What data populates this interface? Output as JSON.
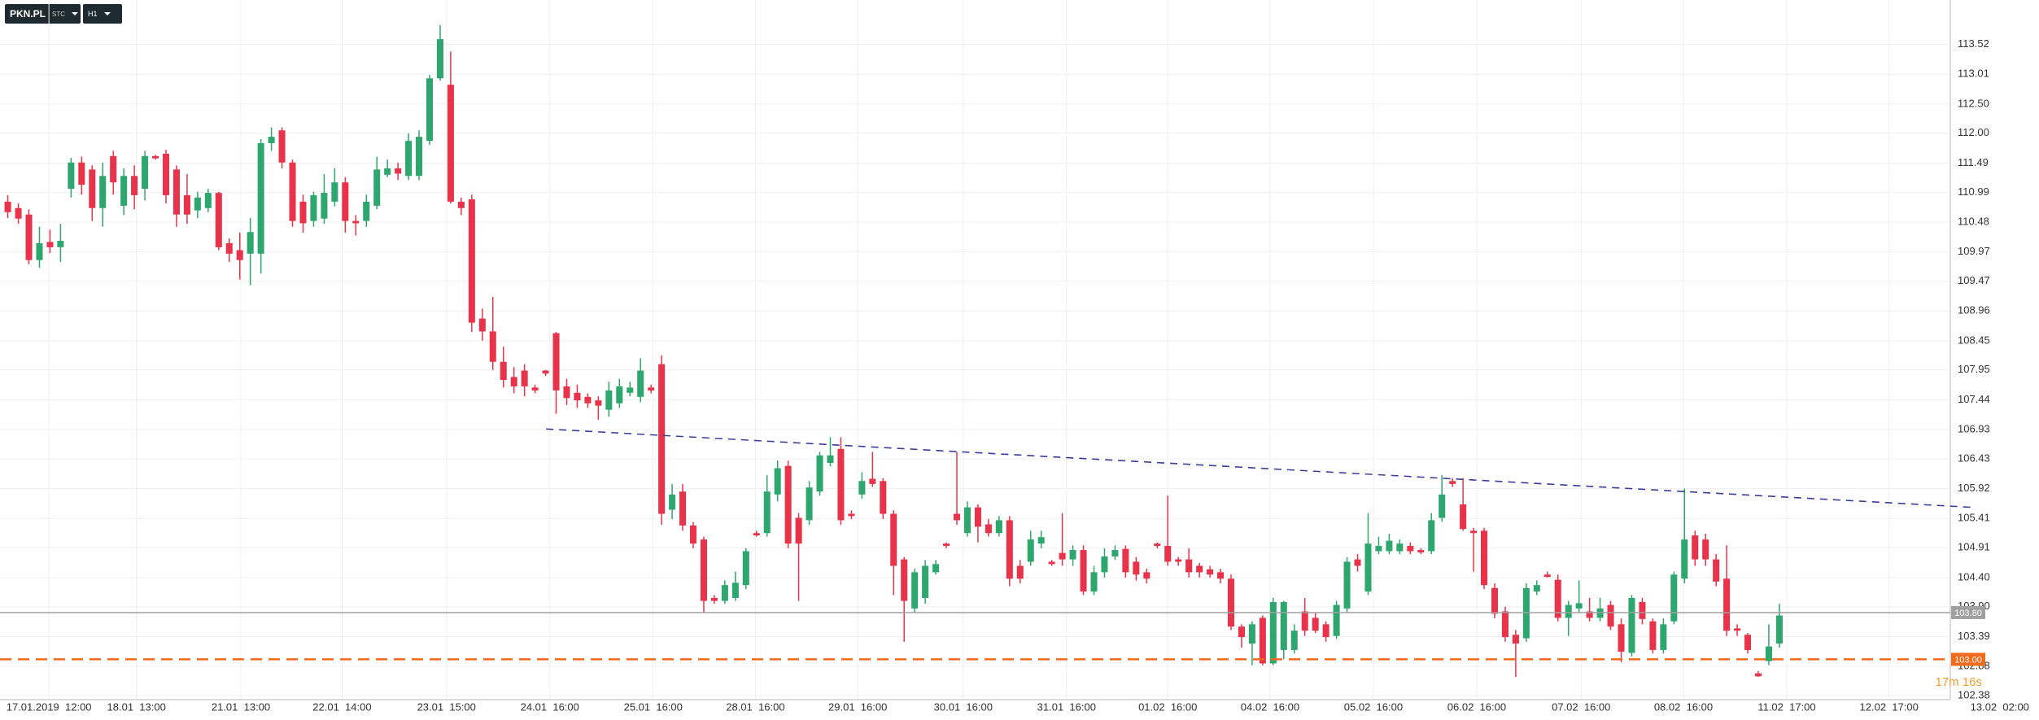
{
  "toolbar": {
    "symbol": "PKN.PL",
    "market": "STC",
    "interval": "H1"
  },
  "chart_data": {
    "type": "candlestick",
    "up_color": "#2ea76f",
    "down_color": "#e8334a",
    "grid": true,
    "open": [
      110.83,
      110.72,
      110.61,
      109.83,
      110.14,
      110.05,
      111.05,
      111.5,
      111.38,
      110.72,
      111.61,
      110.76,
      111.27,
      111.05,
      111.61,
      111.65,
      111.38,
      110.94,
      110.68,
      110.72,
      110.98,
      110.12,
      110.0,
      109.94,
      109.94,
      111.83,
      112.05,
      111.5,
      110.83,
      110.5,
      110.54,
      110.83,
      111.16,
      110.5,
      110.5,
      110.76,
      111.29,
      111.4,
      111.27,
      111.27,
      111.87,
      112.94,
      112.83,
      110.83,
      110.87,
      108.83,
      108.61,
      108.09,
      107.83,
      107.94,
      107.65,
      107.94,
      108.58,
      107.67,
      107.56,
      107.49,
      107.43,
      107.27,
      107.38,
      107.56,
      107.49,
      107.65,
      108.05,
      105.56,
      105.87,
      105.29,
      105.05,
      104.05,
      104.0,
      104.05,
      104.27,
      105.16,
      105.16,
      105.82,
      106.31,
      105.42,
      105.38,
      105.87,
      106.36,
      106.6,
      105.49,
      105.82,
      106.09,
      106.05,
      105.49,
      104.71,
      103.87,
      104.05,
      104.49,
      104.98,
      105.49,
      105.16,
      105.6,
      105.31,
      105.16,
      105.38,
      104.6,
      104.67,
      104.98,
      104.67,
      104.82,
      104.71,
      104.87,
      104.16,
      104.49,
      104.76,
      104.89,
      104.67,
      104.49,
      104.98,
      104.94,
      104.71,
      104.71,
      104.6,
      104.54,
      104.49,
      104.38,
      103.56,
      103.27,
      103.71,
      102.93,
      103.16,
      103.16,
      103.82,
      103.71,
      103.6,
      103.4,
      103.87,
      104.71,
      104.16,
      104.85,
      104.85,
      104.85,
      104.94,
      104.87,
      104.85,
      105.42,
      106.05,
      105.65,
      105.2,
      105.2,
      104.22,
      103.82,
      103.42,
      103.36,
      104.16,
      104.45,
      104.36,
      103.71,
      103.87,
      103.82,
      103.71,
      103.93,
      103.6,
      103.11,
      103.98,
      103.65,
      103.16,
      103.65,
      104.38,
      105.12,
      105.05,
      104.71,
      104.38,
      103.53,
      103.42,
      102.76,
      102.97,
      103.27
    ],
    "high": [
      110.94,
      110.8,
      110.7,
      110.4,
      110.35,
      110.45,
      111.58,
      111.6,
      111.45,
      111.5,
      111.7,
      111.4,
      111.45,
      111.7,
      111.63,
      111.72,
      111.45,
      111.3,
      111.0,
      111.05,
      111.0,
      110.2,
      110.3,
      110.55,
      111.9,
      112.1,
      112.1,
      111.55,
      110.95,
      111.0,
      111.3,
      111.4,
      111.25,
      110.6,
      110.95,
      111.6,
      111.55,
      111.5,
      112.0,
      112.05,
      113.0,
      113.85,
      113.4,
      110.9,
      110.95,
      109.0,
      109.2,
      108.35,
      108.0,
      108.05,
      107.7,
      107.95,
      108.6,
      107.8,
      107.7,
      107.55,
      107.5,
      107.75,
      107.8,
      107.75,
      108.15,
      107.7,
      108.2,
      106.0,
      106.0,
      105.35,
      105.1,
      104.1,
      104.35,
      104.5,
      104.9,
      105.2,
      106.15,
      106.4,
      106.4,
      105.5,
      106.05,
      106.55,
      106.8,
      106.8,
      105.55,
      106.2,
      106.55,
      106.1,
      105.55,
      104.75,
      104.55,
      104.7,
      104.7,
      105.0,
      106.55,
      105.7,
      105.65,
      105.4,
      105.45,
      105.45,
      104.7,
      105.2,
      105.2,
      104.7,
      105.5,
      104.95,
      104.95,
      104.6,
      104.9,
      104.95,
      104.95,
      104.75,
      104.55,
      105.0,
      105.8,
      104.75,
      104.9,
      104.65,
      104.6,
      104.55,
      104.45,
      103.6,
      103.65,
      103.75,
      104.05,
      104.0,
      103.6,
      104.05,
      103.8,
      103.65,
      104.0,
      104.75,
      104.8,
      105.5,
      105.1,
      105.15,
      105.05,
      105.0,
      104.9,
      105.5,
      106.15,
      106.1,
      106.1,
      105.25,
      105.25,
      104.3,
      103.9,
      103.5,
      104.3,
      104.35,
      104.5,
      104.45,
      104.0,
      104.35,
      104.05,
      104.05,
      104.0,
      103.7,
      104.1,
      104.05,
      103.7,
      103.7,
      104.5,
      105.92,
      105.2,
      105.15,
      104.8,
      104.95,
      103.6,
      103.45,
      102.8,
      103.6,
      103.95
    ],
    "low": [
      110.55,
      110.45,
      109.76,
      109.7,
      109.95,
      109.8,
      110.9,
      110.95,
      110.5,
      110.4,
      110.95,
      110.6,
      110.7,
      110.85,
      111.55,
      110.8,
      110.4,
      110.45,
      110.55,
      110.65,
      110.0,
      109.8,
      109.5,
      109.4,
      109.6,
      111.7,
      111.4,
      110.4,
      110.3,
      110.4,
      110.45,
      110.75,
      110.3,
      110.25,
      110.4,
      110.7,
      111.25,
      111.2,
      111.2,
      111.2,
      111.8,
      112.9,
      110.8,
      110.6,
      108.6,
      108.45,
      107.95,
      107.65,
      107.55,
      107.5,
      107.55,
      107.85,
      107.2,
      107.35,
      107.3,
      107.3,
      107.1,
      107.15,
      107.3,
      107.5,
      107.4,
      107.55,
      105.3,
      105.4,
      105.2,
      104.9,
      103.8,
      103.95,
      103.95,
      104.0,
      104.2,
      105.1,
      105.1,
      105.7,
      104.9,
      104.0,
      105.3,
      105.8,
      106.3,
      105.3,
      105.4,
      105.75,
      105.95,
      105.4,
      104.1,
      103.3,
      103.8,
      103.95,
      104.45,
      104.9,
      105.3,
      105.1,
      105.0,
      105.1,
      105.1,
      104.25,
      104.3,
      104.6,
      104.9,
      104.6,
      104.6,
      104.6,
      104.1,
      104.1,
      104.4,
      104.7,
      104.4,
      104.35,
      104.3,
      104.9,
      104.6,
      104.6,
      104.4,
      104.4,
      104.4,
      104.3,
      103.5,
      103.2,
      102.9,
      102.9,
      102.9,
      103.0,
      103.1,
      103.4,
      103.45,
      103.3,
      103.35,
      103.8,
      104.5,
      104.1,
      104.8,
      104.8,
      104.8,
      104.8,
      104.8,
      104.8,
      105.35,
      105.95,
      105.2,
      104.5,
      104.2,
      103.7,
      103.3,
      102.7,
      103.3,
      104.1,
      104.4,
      103.65,
      103.4,
      103.8,
      103.65,
      103.65,
      103.5,
      102.95,
      103.05,
      103.6,
      103.1,
      103.1,
      103.6,
      104.3,
      104.6,
      104.6,
      104.25,
      103.4,
      103.4,
      103.1,
      102.7,
      102.9,
      103.2
    ],
    "close": [
      110.65,
      110.54,
      109.83,
      110.12,
      110.05,
      110.16,
      111.5,
      111.12,
      110.72,
      111.27,
      111.16,
      111.27,
      110.94,
      111.61,
      111.57,
      110.94,
      110.61,
      110.61,
      110.9,
      110.98,
      110.05,
      109.94,
      109.83,
      110.31,
      111.83,
      111.94,
      111.5,
      110.5,
      110.46,
      110.94,
      110.98,
      111.16,
      110.5,
      110.46,
      110.83,
      111.38,
      111.4,
      111.31,
      111.87,
      111.94,
      112.94,
      113.61,
      110.83,
      110.72,
      108.76,
      108.61,
      108.09,
      107.78,
      107.67,
      107.67,
      107.6,
      107.89,
      107.6,
      107.47,
      107.43,
      107.38,
      107.34,
      107.6,
      107.67,
      107.65,
      107.94,
      107.6,
      105.49,
      105.82,
      105.29,
      104.98,
      104.0,
      104.0,
      104.27,
      104.31,
      104.85,
      105.12,
      105.87,
      106.27,
      104.98,
      104.98,
      105.94,
      106.49,
      106.49,
      105.38,
      105.45,
      106.05,
      106.0,
      105.49,
      104.6,
      104.0,
      104.49,
      104.6,
      104.63,
      104.94,
      105.38,
      105.6,
      105.27,
      105.16,
      105.38,
      104.38,
      104.38,
      105.05,
      105.09,
      104.63,
      104.71,
      104.87,
      104.16,
      104.49,
      104.76,
      104.87,
      104.49,
      104.45,
      104.38,
      104.94,
      104.67,
      104.67,
      104.49,
      104.49,
      104.45,
      104.38,
      103.56,
      103.38,
      103.6,
      102.93,
      103.98,
      103.98,
      103.49,
      103.49,
      103.49,
      103.38,
      103.93,
      104.67,
      104.6,
      104.98,
      104.94,
      105.03,
      104.98,
      104.85,
      104.83,
      105.38,
      105.82,
      106.0,
      105.23,
      105.16,
      104.27,
      103.78,
      103.38,
      103.27,
      104.22,
      104.27,
      104.41,
      103.71,
      103.93,
      103.96,
      103.71,
      103.87,
      103.56,
      103.13,
      104.05,
      103.69,
      103.16,
      103.6,
      104.45,
      105.05,
      104.71,
      104.71,
      104.33,
      103.49,
      103.49,
      103.16,
      102.71,
      103.22,
      103.75
    ],
    "xlim": [
      -0.74,
      184.21
    ],
    "xticks": [
      {
        "value": 3.9,
        "label": "17.01.2019  12:00"
      },
      {
        "value": 12.2,
        "label": "18.01  13:00"
      },
      {
        "value": 22.1,
        "label": "21.01  13:00"
      },
      {
        "value": 31.7,
        "label": "22.01  14:00"
      },
      {
        "value": 41.6,
        "label": "23.01  15:00"
      },
      {
        "value": 51.4,
        "label": "24.01  16:00"
      },
      {
        "value": 61.2,
        "label": "25.01  16:00"
      },
      {
        "value": 70.9,
        "label": "28.01  16:00"
      },
      {
        "value": 80.6,
        "label": "29.01  16:00"
      },
      {
        "value": 90.6,
        "label": "30.01  16:00"
      },
      {
        "value": 100.4,
        "label": "31.01  16:00"
      },
      {
        "value": 110,
        "label": "01.02  16:00"
      },
      {
        "value": 119.7,
        "label": "04.02  16:00"
      },
      {
        "value": 129.5,
        "label": "05.02  16:00"
      },
      {
        "value": 139.3,
        "label": "06.02  16:00"
      },
      {
        "value": 149.2,
        "label": "07.02  16:00"
      },
      {
        "value": 158.9,
        "label": "08.02  16:00"
      },
      {
        "value": 168.7,
        "label": "11.02  17:00"
      },
      {
        "value": 178.4,
        "label": "12.02  17:00"
      },
      {
        "value": 188.9,
        "label": "13.02  02:00"
      }
    ],
    "ylim": [
      102.31,
      114.28
    ],
    "yticks": [
      113.52,
      113.01,
      {
        "value": 112.5,
        "label": "112.50"
      },
      {
        "value": 112,
        "label": "112.00"
      },
      111.49,
      110.99,
      110.48,
      109.97,
      109.47,
      108.96,
      108.45,
      107.95,
      107.44,
      106.93,
      106.43,
      105.92,
      105.41,
      104.91,
      {
        "value": 104.4,
        "label": "104.40"
      },
      {
        "value": 103.9,
        "label": "103.90"
      },
      103.39,
      102.88,
      102.38
    ],
    "price_lines": [
      {
        "value": 103.8,
        "label": "103.80",
        "color": "#a0a0a0",
        "dashed": false
      },
      {
        "value": 103,
        "label": "103.00",
        "color": "#f26a1b",
        "dashed": true
      }
    ],
    "trendline": {
      "x": [
        51.05,
        186.3
      ],
      "y": [
        106.94,
        105.6
      ],
      "color": "#3a3f96"
    },
    "countdown": "17m 16s",
    "countdown_color": "#f0a030"
  }
}
